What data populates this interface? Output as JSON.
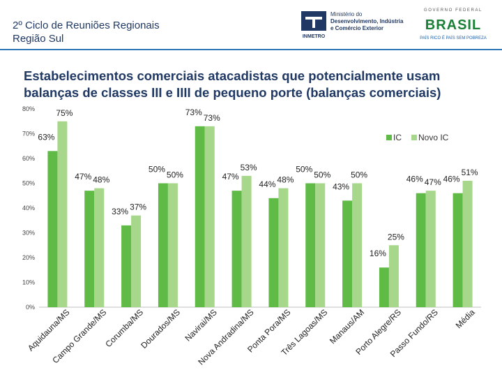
{
  "header": {
    "event_title": "2º Ciclo de Reuniões Regionais",
    "event_subtitle": "Região Sul",
    "logo_inmetro": "INMETRO",
    "ministry_lines": [
      "Ministério do",
      "Desenvolvimento, Indústria",
      "e Comércio Exterior"
    ],
    "gov_label": "GOVERNO FEDERAL",
    "gov_word": "BRASIL",
    "gov_slogan": "PAÍS RICO É PAÍS SEM POBREZA"
  },
  "colors": {
    "ic": "#5fba46",
    "novo_ic": "#a6d78a",
    "title": "#1f3864",
    "header_rule": "#2e75b6"
  },
  "chart_data": {
    "type": "bar",
    "title_lines": [
      "Estabelecimentos comerciais atacadistas que potencialmente usam",
      "balanças de classes III e IIII de pequeno porte (balanças comerciais)"
    ],
    "categories": [
      "Aquidauna/MS",
      "Campo Grande/MS",
      "Corumba/MS",
      "Dourados/MS",
      "Navirai/MS",
      "Nova Andradina/MS",
      "Ponta Pora/MS",
      "Três Lagoas/MS",
      "Manaus/AM",
      "Porto Alegre/RS",
      "Passo Fundo/RS",
      "Média"
    ],
    "series": [
      {
        "name": "IC",
        "values": [
          63,
          47,
          33,
          50,
          73,
          47,
          44,
          50,
          43,
          16,
          46,
          46
        ]
      },
      {
        "name": "Novo IC",
        "values": [
          75,
          48,
          37,
          50,
          73,
          53,
          48,
          50,
          50,
          25,
          47,
          51
        ]
      }
    ],
    "value_labels": {
      "IC": [
        "63%",
        "47%",
        "33%",
        "50%",
        "73%",
        "47%",
        "44%",
        "50%",
        "43%",
        "16%",
        "46%",
        "46%"
      ],
      "Novo IC": [
        "75%",
        "48%",
        "37%",
        "50%",
        "73%",
        "53%",
        "48%",
        "50%",
        "50%",
        "25%",
        "47%",
        "51%"
      ]
    },
    "y_ticks": [
      "0%",
      "10%",
      "20%",
      "30%",
      "40%",
      "50%",
      "60%",
      "70%",
      "80%"
    ],
    "ylim": [
      0,
      80
    ],
    "legend": [
      "IC",
      "Novo IC"
    ],
    "legend_position": "top-right",
    "grid": false
  }
}
